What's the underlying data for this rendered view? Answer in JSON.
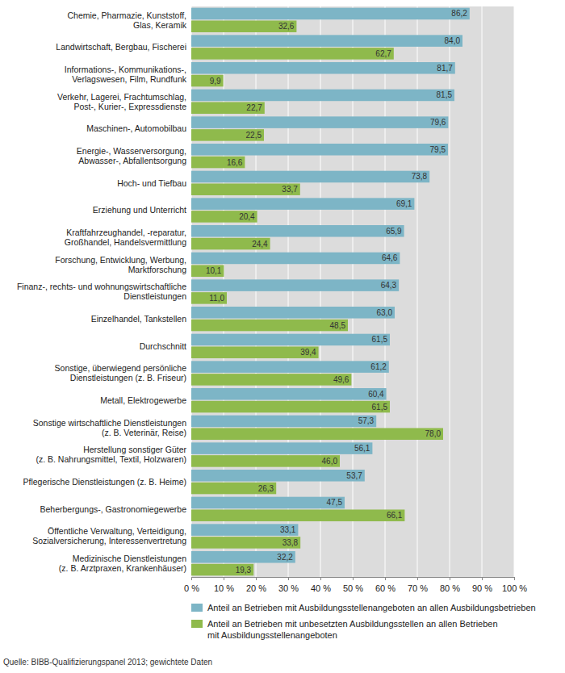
{
  "chart_data": {
    "type": "bar",
    "orientation": "horizontal",
    "grid": true,
    "data_labels": true,
    "legend": "bottom",
    "source": "Quelle: BIBB-Qualifizierungspanel 2013; gewichtete Daten",
    "categories": [
      "Chemie, Pharmazie, Kunststoff,\nGlas, Keramik",
      "Landwirtschaft, Bergbau, Fischerei",
      "Informations-, Kommunikations-,\nVerlagswesen, Film, Rundfunk",
      "Verkehr, Lagerei, Frachtumschlag,\nPost-, Kurier-, Expressdienste",
      "Maschinen-, Automobilbau",
      "Energie-, Wasserversorgung,\nAbwasser-, Abfallentsorgung",
      "Hoch- und Tiefbau",
      "Erziehung und Unterricht",
      "Kraftfahrzeughandel, -reparatur,\nGroßhandel, Handelsvermittlung",
      "Forschung, Entwicklung, Werbung,\nMarktforschung",
      "Finanz-, rechts- und wohnungswirtschaftliche\nDienstleistungen",
      "Einzelhandel, Tankstellen",
      "Durchschnitt",
      "Sonstige, überwiegend persönliche\nDienstleistungen (z. B. Friseur)",
      "Metall, Elektrogewerbe",
      "Sonstige wirtschaftliche Dienstleistungen\n(z. B. Veterinär, Reise)",
      "Herstellung sonstiger Güter\n(z. B. Nahrungsmittel, Textil, Holzwaren)",
      "Pflegerische Dienstleistungen (z. B. Heime)",
      "Beherbergungs-, Gastronomiegewerbe",
      "Öffentliche Verwaltung, Verteidigung,\nSozialversicherung, Interessenvertretung",
      "Medizinische Dienstleistungen\n(z. B. Arztpraxen, Krankenhäuser)"
    ],
    "series": [
      {
        "name": "Anteil an Betrieben mit Ausbildungsstellenangeboten an allen Ausbildungsbetrieben",
        "color": "#7db5c6",
        "values": [
          86.2,
          84.0,
          81.7,
          81.5,
          79.6,
          79.5,
          73.8,
          69.1,
          65.9,
          64.6,
          64.3,
          63.0,
          61.5,
          61.2,
          60.4,
          57.3,
          56.1,
          53.7,
          47.5,
          33.1,
          32.2
        ],
        "value_labels": [
          "86,2",
          "84,0",
          "81,7",
          "81,5",
          "79,6",
          "79,5",
          "73,8",
          "69,1",
          "65,9",
          "64,6",
          "64,3",
          "63,0",
          "61,5",
          "61,2",
          "60,4",
          "57,3",
          "56,1",
          "53,7",
          "47,5",
          "33,1",
          "32,2"
        ]
      },
      {
        "name": "Anteil an Betrieben mit unbesetzten Ausbildungsstellen an allen Betrieben\nmit Ausbildungsstellenangeboten",
        "color": "#8fba4c",
        "values": [
          32.6,
          62.7,
          9.9,
          22.7,
          22.5,
          16.6,
          33.7,
          20.4,
          24.4,
          10.1,
          11.0,
          48.5,
          39.4,
          49.6,
          61.5,
          78.0,
          46.0,
          26.3,
          66.1,
          33.8,
          19.3
        ],
        "value_labels": [
          "32,6",
          "62,7",
          "9,9",
          "22,7",
          "22,5",
          "16,6",
          "33,7",
          "20,4",
          "24,4",
          "10,1",
          "11,0",
          "48,5",
          "39,4",
          "49,6",
          "61,5",
          "78,0",
          "46,0",
          "26,3",
          "66,1",
          "33,8",
          "19,3"
        ]
      }
    ],
    "xlim": [
      0,
      100
    ],
    "xticks": [
      {
        "value": 0,
        "label": "0 %"
      },
      {
        "value": 10,
        "label": "10 %"
      },
      {
        "value": 20,
        "label": "20 %"
      },
      {
        "value": 30,
        "label": "30 %"
      },
      {
        "value": 40,
        "label": "40 %"
      },
      {
        "value": 50,
        "label": "50 %"
      },
      {
        "value": 60,
        "label": "60 %"
      },
      {
        "value": 70,
        "label": "70 %"
      },
      {
        "value": 80,
        "label": "80 %"
      },
      {
        "value": 90,
        "label": "90 %"
      },
      {
        "value": 100,
        "label": "100 %"
      }
    ]
  }
}
